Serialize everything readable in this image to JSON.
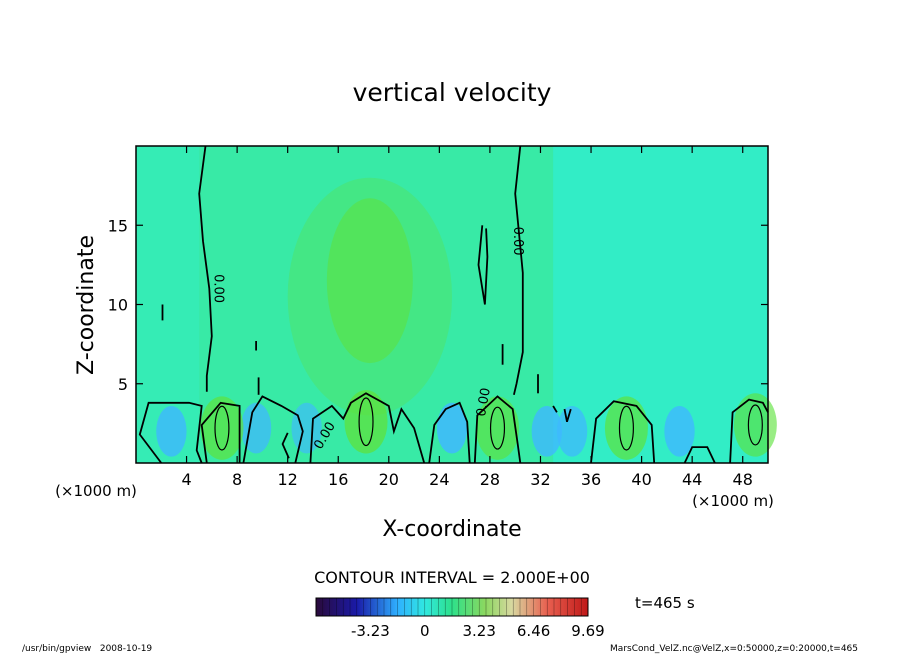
{
  "chart_data": {
    "type": "heatmap",
    "title": "vertical velocity",
    "xlabel": "X-coordinate",
    "ylabel": "Z-coordinate",
    "x_unit_label": "(×1000 m)",
    "xlim": [
      0,
      50
    ],
    "ylim": [
      0,
      20
    ],
    "x_ticks": [
      4,
      8,
      12,
      16,
      20,
      24,
      28,
      32,
      36,
      40,
      44,
      48
    ],
    "y_ticks": [
      5,
      10,
      15
    ],
    "contour_labels": [
      "0.00",
      "0.00",
      "0.00",
      "0.00"
    ],
    "contour_interval_text": "CONTOUR INTERVAL = 2.000E+00",
    "time_label": "t=465 s",
    "colorbar": {
      "min": -6.46,
      "max": 9.69,
      "tick_values": [
        -3.23,
        0,
        3.23,
        6.46,
        9.69
      ],
      "tick_labels": [
        "-3.23",
        "0",
        "3.23",
        "6.46",
        "9.69"
      ]
    },
    "footer_left": "/usr/bin/gpview   2008-10-19",
    "footer_right": "MarsCond_VelZ.nc@VelZ,x=0:50000,z=0:20000,t=465",
    "updrafts": [
      {
        "x": 6.8,
        "z": 2.2,
        "peak": 4.0
      },
      {
        "x": 18.2,
        "z": 2.6,
        "peak": 5.0
      },
      {
        "x": 28.6,
        "z": 2.2,
        "peak": 3.5
      },
      {
        "x": 38.8,
        "z": 2.2,
        "peak": 4.0
      },
      {
        "x": 49.0,
        "z": 2.4,
        "peak": 3.0
      }
    ],
    "downdrafts": [
      {
        "x": 2.8,
        "z": 2.0,
        "peak": -1.8
      },
      {
        "x": 9.5,
        "z": 2.2,
        "peak": -1.5
      },
      {
        "x": 13.5,
        "z": 2.2,
        "peak": -1.2
      },
      {
        "x": 25.0,
        "z": 2.2,
        "peak": -2.0
      },
      {
        "x": 32.5,
        "z": 2.0,
        "peak": -1.8
      },
      {
        "x": 34.5,
        "z": 2.0,
        "peak": -1.5
      },
      {
        "x": 43.0,
        "z": 2.0,
        "peak": -1.8
      }
    ]
  }
}
